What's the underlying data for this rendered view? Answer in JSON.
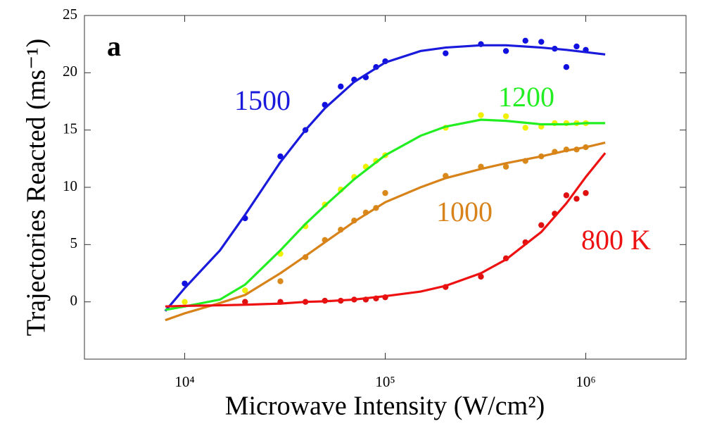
{
  "chart_data": {
    "type": "scatter",
    "x_label": "Microwave Intensity (W/cm²)",
    "y_label": "Trajectories Reacted (ms⁻¹)",
    "log_x": true,
    "xlim": [
      3162,
      3162278
    ],
    "xticks": [
      {
        "value": 10000,
        "label": "10⁴"
      },
      {
        "value": 100000,
        "label": "10⁵"
      },
      {
        "value": 1000000,
        "label": "10⁶"
      }
    ],
    "ylim": [
      -5,
      25
    ],
    "yticks": [
      0,
      5,
      10,
      15,
      20,
      25
    ],
    "annotations": [
      {
        "text": "a",
        "color": "#000000"
      },
      {
        "text": "1500",
        "color": "#1a1adc"
      },
      {
        "text": "1200",
        "color": "#22ee22"
      },
      {
        "text": "1000",
        "color": "#d8821a"
      },
      {
        "text": "800 K",
        "color": "#ee1111"
      }
    ],
    "series": [
      {
        "mode": "markers",
        "color": "#1010e0",
        "x": [
          10000,
          20000,
          30000,
          40000,
          50000,
          60000,
          70000,
          80000,
          90000,
          100000,
          200000,
          300000,
          400000,
          500000,
          600000,
          700000,
          800000,
          900000,
          1000000
        ],
        "values": [
          1.6,
          7.3,
          12.7,
          15.0,
          17.2,
          18.8,
          19.4,
          19.6,
          20.5,
          21.0,
          21.7,
          22.5,
          21.9,
          22.8,
          22.7,
          22.1,
          20.5,
          22.3,
          22.0
        ]
      },
      {
        "mode": "markers",
        "color": "#f0f000",
        "x": [
          10000,
          20000,
          30000,
          40000,
          50000,
          60000,
          70000,
          80000,
          90000,
          100000,
          200000,
          300000,
          400000,
          500000,
          600000,
          700000,
          800000,
          900000,
          1000000
        ],
        "values": [
          0,
          1.0,
          4.2,
          6.6,
          8.5,
          9.8,
          10.9,
          11.8,
          12.3,
          12.8,
          15.2,
          16.3,
          16.2,
          15.2,
          15.3,
          15.6,
          15.6,
          15.6,
          15.6
        ]
      },
      {
        "mode": "markers",
        "color": "#d98a1a",
        "x": [
          20000,
          30000,
          40000,
          50000,
          60000,
          70000,
          80000,
          90000,
          100000,
          200000,
          300000,
          400000,
          500000,
          600000,
          700000,
          800000,
          900000,
          1000000
        ],
        "values": [
          0,
          1.8,
          3.9,
          5.4,
          6.3,
          7.1,
          7.8,
          8.2,
          9.5,
          11.0,
          11.8,
          11.8,
          12.3,
          12.7,
          13.1,
          13.3,
          13.3,
          13.5
        ]
      },
      {
        "mode": "markers",
        "color": "#e01010",
        "x": [
          20000,
          30000,
          40000,
          50000,
          60000,
          70000,
          80000,
          90000,
          100000,
          200000,
          300000,
          400000,
          500000,
          600000,
          700000,
          800000,
          900000,
          1000000
        ],
        "values": [
          0,
          0,
          0,
          0.1,
          0.1,
          0.2,
          0.2,
          0.3,
          0.4,
          1.3,
          2.2,
          3.8,
          5.2,
          6.7,
          7.7,
          9.3,
          9.0,
          9.5
        ]
      },
      {
        "mode": "lines",
        "color": "#1a1adc",
        "x": [
          8000,
          10000,
          15000,
          20000,
          30000,
          40000,
          50000,
          70000,
          100000,
          150000,
          200000,
          300000,
          400000,
          600000,
          800000,
          1000000,
          1250000
        ],
        "values": [
          -0.8,
          1.2,
          4.5,
          7.6,
          12.2,
          15.0,
          16.9,
          19.2,
          20.9,
          21.9,
          22.2,
          22.4,
          22.4,
          22.2,
          22.0,
          21.8,
          21.6
        ]
      },
      {
        "mode": "lines",
        "color": "#22ee22",
        "x": [
          8000,
          10000,
          15000,
          20000,
          30000,
          40000,
          50000,
          70000,
          100000,
          150000,
          200000,
          300000,
          400000,
          600000,
          800000,
          1000000,
          1250000
        ],
        "values": [
          -0.7,
          -0.4,
          0.2,
          1.5,
          4.5,
          6.8,
          8.4,
          10.7,
          12.8,
          14.5,
          15.3,
          15.9,
          15.8,
          15.5,
          15.5,
          15.6,
          15.6
        ]
      },
      {
        "mode": "lines",
        "color": "#d8821a",
        "x": [
          8000,
          10000,
          15000,
          20000,
          30000,
          40000,
          50000,
          70000,
          100000,
          150000,
          200000,
          300000,
          400000,
          600000,
          800000,
          1000000,
          1250000
        ],
        "values": [
          -1.6,
          -1.0,
          -0.1,
          0.6,
          2.5,
          4.0,
          5.2,
          7.0,
          8.7,
          10.0,
          10.8,
          11.6,
          12.1,
          12.7,
          13.2,
          13.5,
          13.9
        ]
      },
      {
        "mode": "lines",
        "color": "#ee1111",
        "x": [
          8000,
          10000,
          15000,
          20000,
          30000,
          40000,
          50000,
          70000,
          100000,
          150000,
          200000,
          300000,
          400000,
          600000,
          800000,
          1000000,
          1250000
        ],
        "values": [
          -0.4,
          -0.35,
          -0.3,
          -0.25,
          -0.15,
          0,
          0.05,
          0.2,
          0.5,
          0.9,
          1.4,
          2.5,
          3.7,
          6.1,
          8.6,
          10.9,
          13.0
        ]
      }
    ]
  }
}
